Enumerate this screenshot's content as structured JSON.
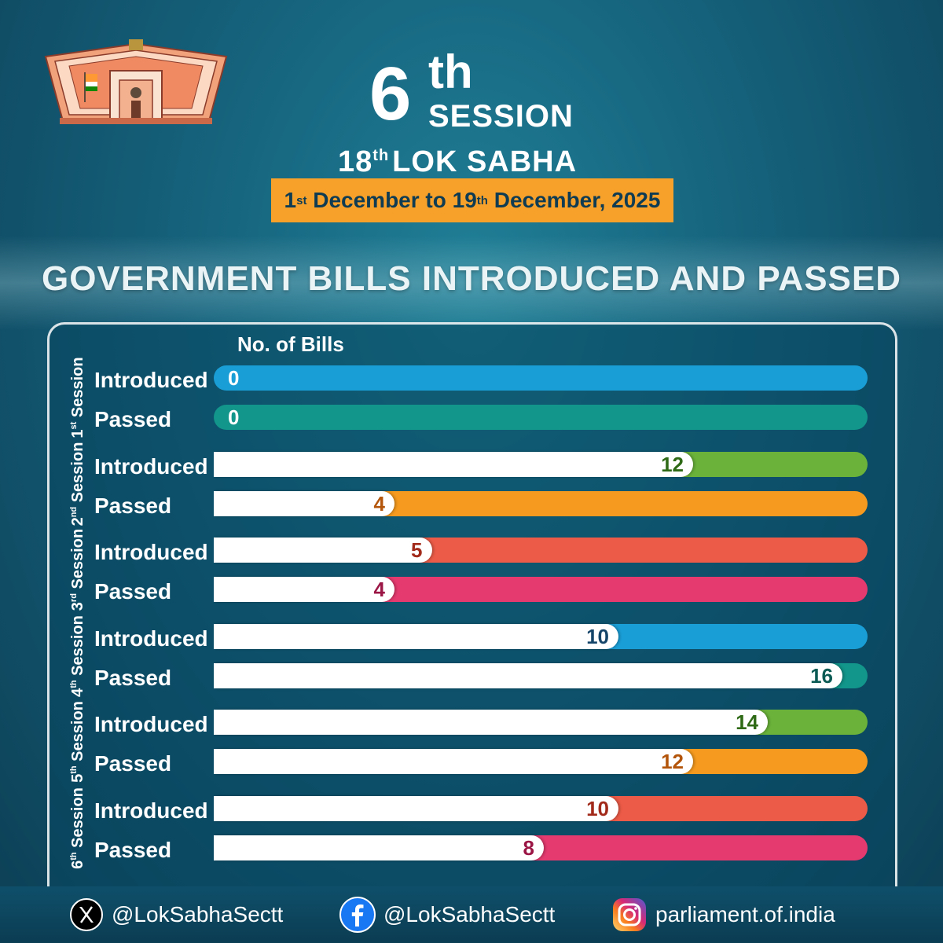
{
  "header": {
    "session_number": "6",
    "session_suffix": "th",
    "session_word": "SESSION",
    "lok_number": "18",
    "lok_suffix": "th",
    "lok_text": "LOK SABHA",
    "date": {
      "start_day": "1",
      "start_suffix": "st",
      "start_rest": " December to 19",
      "end_suffix": "th",
      "end_rest": " December, 2025"
    }
  },
  "chart_data": {
    "type": "bar",
    "orientation": "horizontal",
    "title": "GOVERNMENT BILLS INTRODUCED AND PASSED",
    "xlabel": "No. of Bills",
    "xlim": [
      0,
      16
    ],
    "groups": [
      {
        "num": "1",
        "suffix": "st",
        "word": "Session",
        "rows": [
          {
            "label": "Introduced",
            "value": 0,
            "color": "#1a9ed6",
            "text_color": "#ffffff"
          },
          {
            "label": "Passed",
            "value": 0,
            "color": "#12958a",
            "text_color": "#ffffff"
          }
        ]
      },
      {
        "num": "2",
        "suffix": "nd",
        "word": "Session",
        "rows": [
          {
            "label": "Introduced",
            "value": 12,
            "color": "#6ab23a",
            "text_color": "#2f6b16"
          },
          {
            "label": "Passed",
            "value": 4,
            "color": "#f59a1e",
            "text_color": "#b3560c"
          }
        ]
      },
      {
        "num": "3",
        "suffix": "rd",
        "word": "Session",
        "rows": [
          {
            "label": "Introduced",
            "value": 5,
            "color": "#ec5b47",
            "text_color": "#a12a1a"
          },
          {
            "label": "Passed",
            "value": 4,
            "color": "#e43a6f",
            "text_color": "#9b1545"
          }
        ]
      },
      {
        "num": "4",
        "suffix": "th",
        "word": "Session",
        "rows": [
          {
            "label": "Introduced",
            "value": 10,
            "color": "#1a9ed6",
            "text_color": "#15466a"
          },
          {
            "label": "Passed",
            "value": 16,
            "color": "#12958a",
            "text_color": "#0c5b55"
          }
        ]
      },
      {
        "num": "5",
        "suffix": "th",
        "word": "Session",
        "rows": [
          {
            "label": "Introduced",
            "value": 14,
            "color": "#6ab23a",
            "text_color": "#2f6b16"
          },
          {
            "label": "Passed",
            "value": 12,
            "color": "#f59a1e",
            "text_color": "#b3560c"
          }
        ]
      },
      {
        "num": "6",
        "suffix": "th",
        "word": "Session",
        "rows": [
          {
            "label": "Introduced",
            "value": 10,
            "color": "#ec5b47",
            "text_color": "#a12a1a"
          },
          {
            "label": "Passed",
            "value": 8,
            "color": "#e43a6f",
            "text_color": "#9b1545"
          }
        ]
      }
    ]
  },
  "footer": {
    "x_handle": "@LokSabhaSectt",
    "facebook_handle": "@LokSabhaSectt",
    "instagram_handle": "parliament.of.india",
    "icons": [
      "x-icon",
      "facebook-icon",
      "instagram-icon"
    ]
  }
}
